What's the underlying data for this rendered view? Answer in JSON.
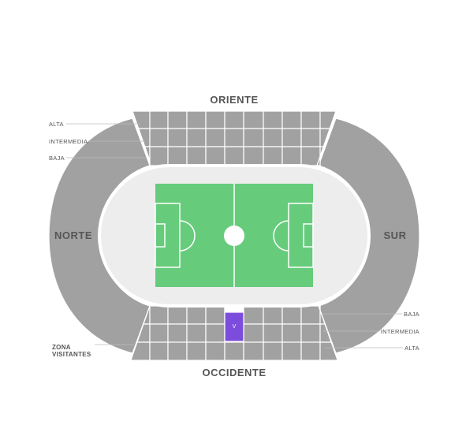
{
  "stands": {
    "east": "ORIENTE",
    "west": "OCCIDENTE",
    "north": "NORTE",
    "south": "SUR"
  },
  "tiers_east": [
    "ALTA",
    "INTERMEDIA",
    "BAJA"
  ],
  "tiers_west": [
    "BAJA",
    "INTERMEDIA",
    "ALTA"
  ],
  "visitor_zone": {
    "label_line1": "ZONA",
    "label_line2": "VISITANTES",
    "block_label": "V",
    "color": "#7c4ddc"
  },
  "colors": {
    "stands": "#a1a1a1",
    "track": "#ededed",
    "pitch": "#66cc7c",
    "lines": "#ffffff",
    "labels": "#555555"
  }
}
